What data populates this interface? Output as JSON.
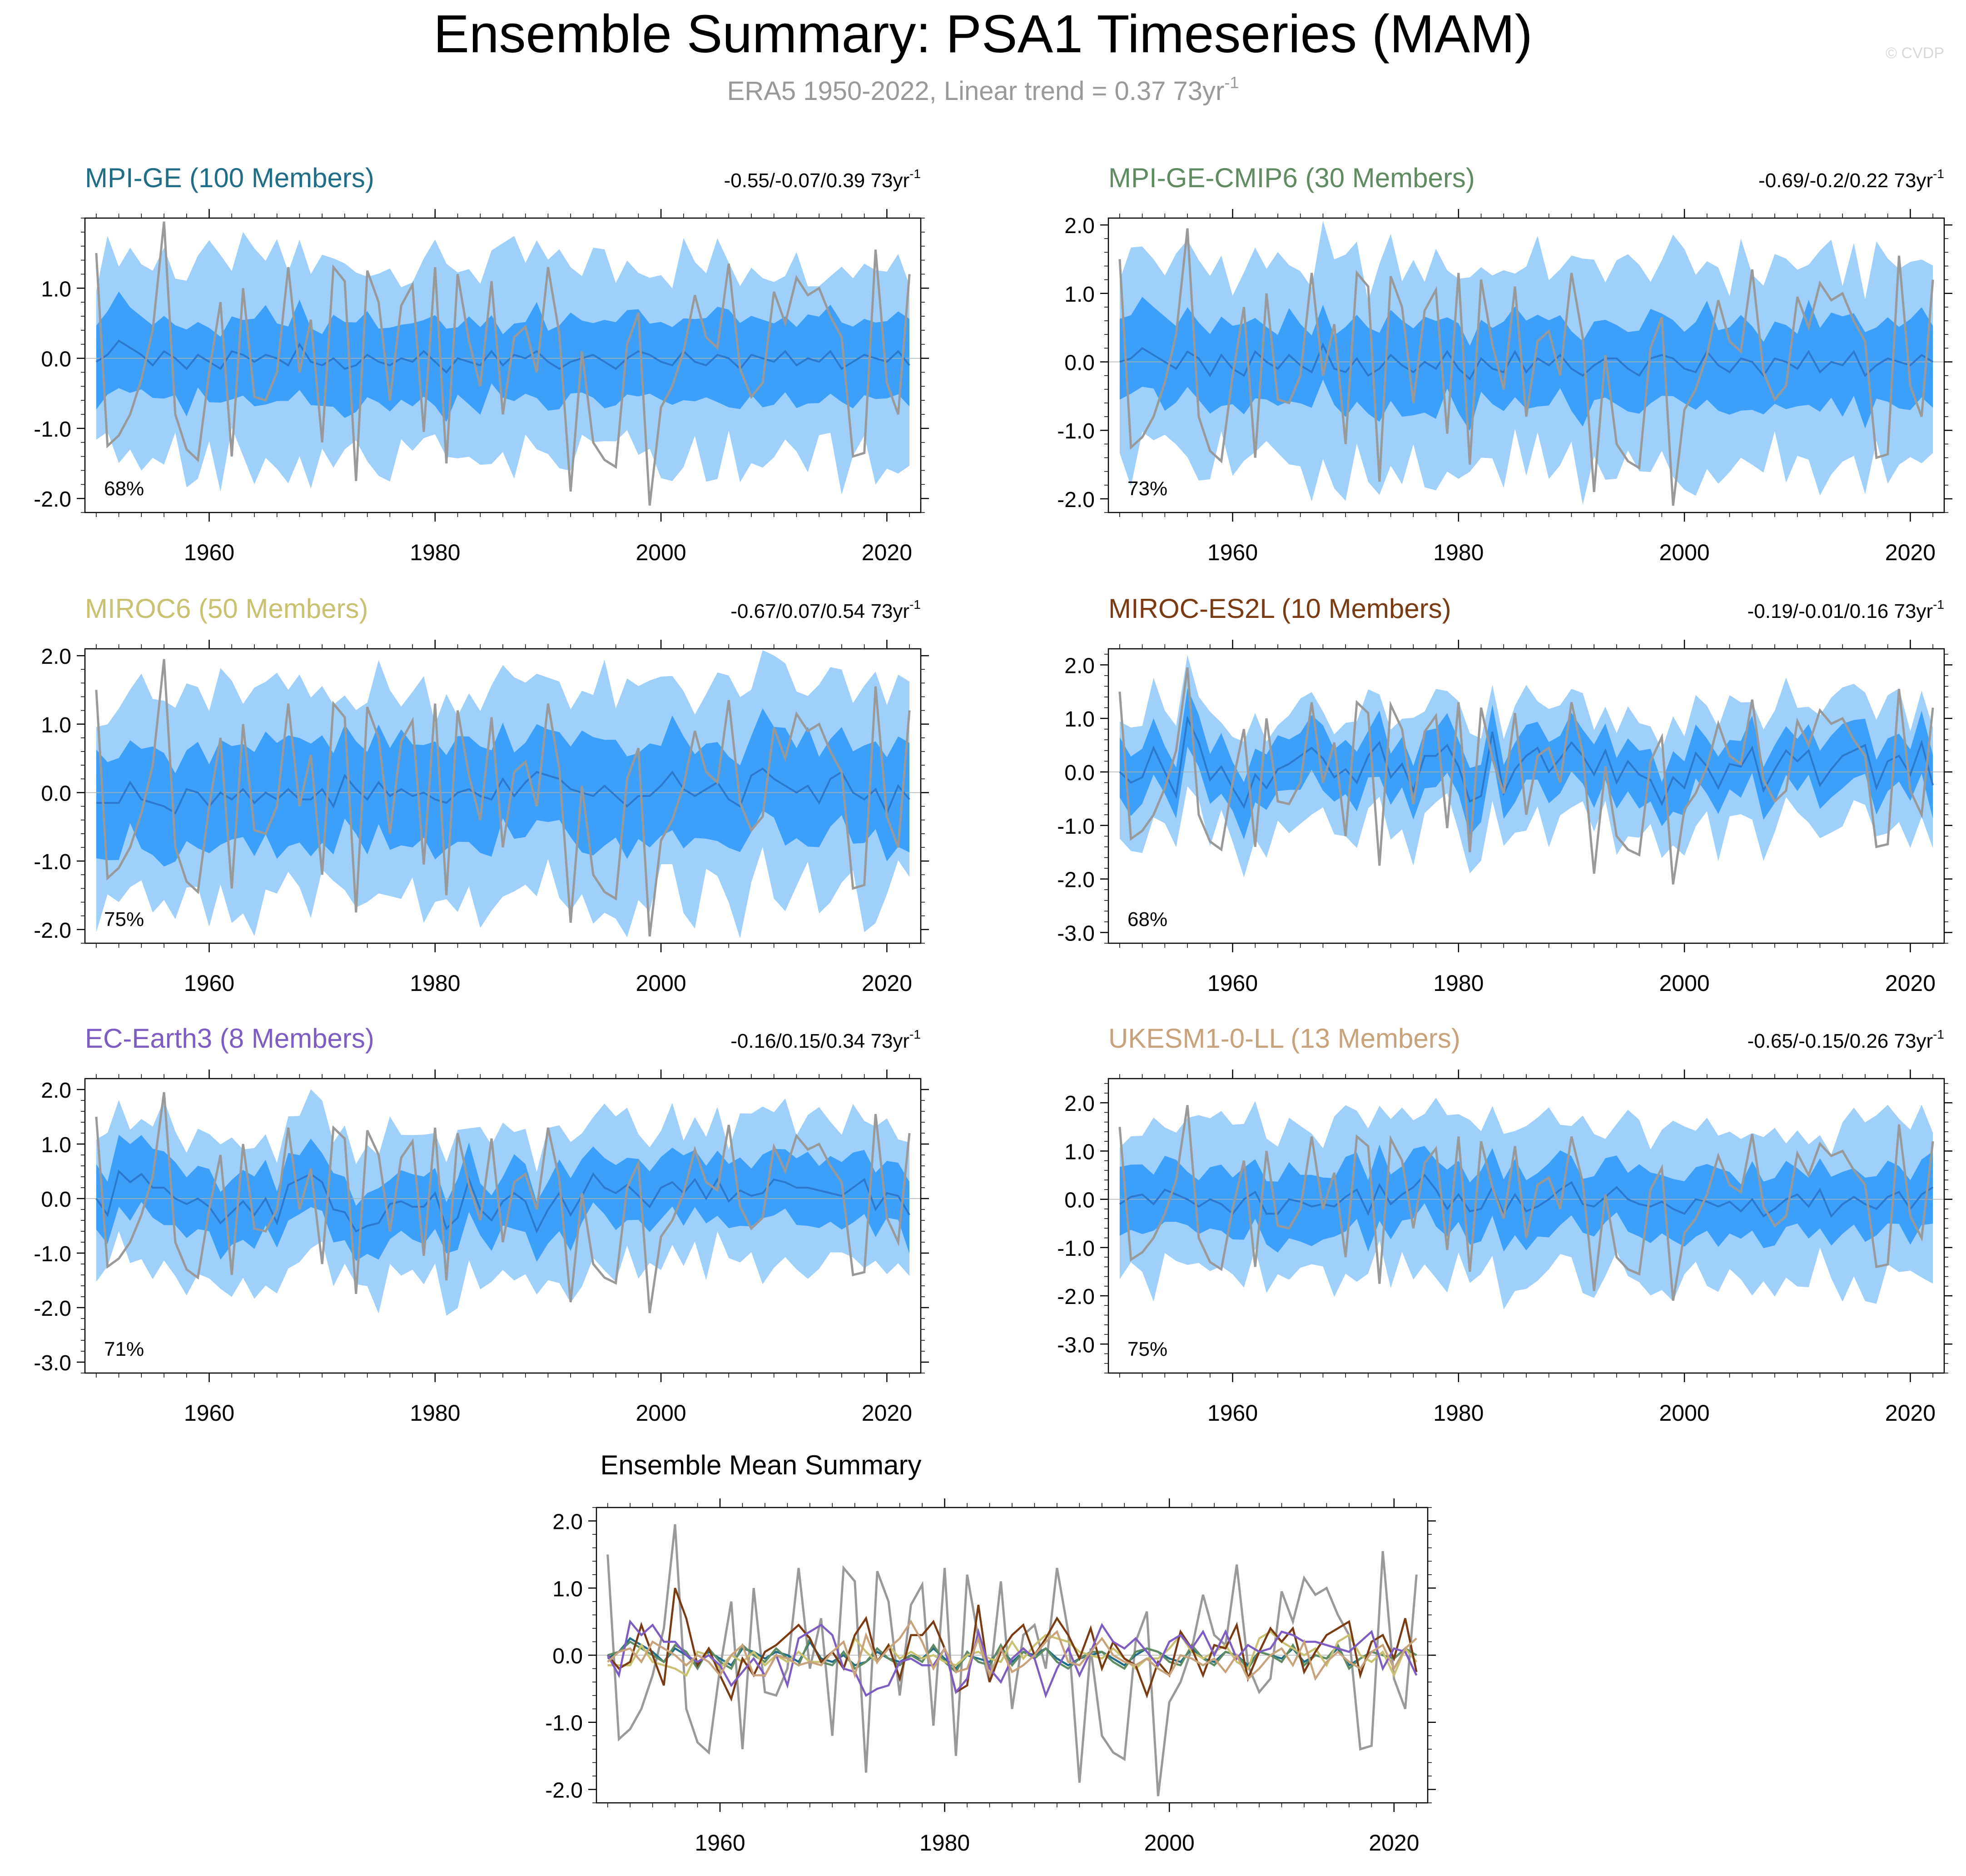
{
  "page": {
    "title": "Ensemble Summary: PSA1 Timeseries (MAM)",
    "subtitle_main": "ERA5 1950-2022, Linear trend = 0.37 73yr",
    "subtitle_sup": "-1",
    "watermark": "© CVDP"
  },
  "colors": {
    "outer_band": "#9fd0fb",
    "inner_band": "#3ca0fb",
    "ens_mean_line": "#2b78cc",
    "obs_line": "#999999",
    "zero_line": "#b0b0b0"
  },
  "chart_data": [
    {
      "type": "area",
      "panel": "MPI-GE",
      "title": "MPI-GE (100 Members)",
      "title_color": "#1f6d86",
      "trend_label": "-0.55/-0.07/0.39 73yr",
      "trend_sup": "-1",
      "pct_label": "68%",
      "ylim": [
        -2.2,
        2.0
      ],
      "yticks": [
        "1.0",
        "0.0",
        "-1.0",
        "-2.0"
      ],
      "ytick_values": [
        1.0,
        0.0,
        -1.0,
        -2.0
      ],
      "xticks": [
        "1960",
        "1980",
        "2000",
        "2020"
      ],
      "xtick_values": [
        1960,
        1980,
        2000,
        2020
      ],
      "xlim": [
        1949,
        2023
      ],
      "ens_mean": [
        -0.05,
        0.05,
        0.25,
        0.15,
        0.05,
        -0.1,
        0.1,
        0.0,
        -0.15,
        0.05,
        -0.05,
        -0.15,
        0.1,
        0.05,
        -0.05,
        0.05,
        0.0,
        -0.1,
        0.2,
        -0.05,
        -0.1,
        0.0,
        -0.15,
        -0.1,
        0.05,
        -0.05,
        -0.1,
        0.0,
        -0.05,
        0.1,
        -0.05,
        -0.2,
        0.0,
        -0.05,
        -0.1,
        0.1,
        -0.1,
        0.05,
        0.0,
        0.1,
        -0.05,
        -0.15,
        -0.05,
        0.0,
        0.05,
        -0.05,
        -0.15,
        0.0,
        0.1,
        0.05,
        -0.05,
        -0.1,
        0.1,
        -0.05,
        -0.1,
        0.05,
        0.0,
        -0.15,
        0.05,
        0.0,
        -0.05,
        0.1,
        -0.1,
        0.0,
        -0.05,
        0.1,
        -0.15,
        -0.05,
        0.05,
        0.0,
        -0.05,
        0.1,
        -0.1
      ],
      "band_spread": [
        1.35,
        0.55
      ]
    },
    {
      "type": "area",
      "panel": "MPI-GE-CMIP6",
      "title": "MPI-GE-CMIP6 (30 Members)",
      "title_color": "#5f8a62",
      "trend_label": "-0.69/-0.2/0.22 73yr",
      "trend_sup": "-1",
      "pct_label": "73%",
      "ylim": [
        -2.2,
        2.1
      ],
      "yticks": [
        "2.0",
        "1.0",
        "0.0",
        "-1.0",
        "-2.0"
      ],
      "ytick_values": [
        2.0,
        1.0,
        0.0,
        -1.0,
        -2.0
      ],
      "xticks": [
        "1960",
        "1980",
        "2000",
        "2020"
      ],
      "xtick_values": [
        1960,
        1980,
        2000,
        2020
      ],
      "xlim": [
        1949,
        2023
      ],
      "ens_mean": [
        0.0,
        0.05,
        0.2,
        0.1,
        0.0,
        -0.1,
        0.15,
        0.05,
        -0.2,
        0.1,
        -0.1,
        -0.2,
        0.15,
        0.0,
        -0.1,
        0.1,
        -0.05,
        -0.15,
        0.25,
        -0.1,
        -0.15,
        0.05,
        -0.2,
        -0.1,
        0.1,
        -0.05,
        -0.15,
        0.0,
        -0.1,
        0.15,
        -0.1,
        -0.25,
        0.05,
        -0.1,
        -0.15,
        0.15,
        -0.15,
        0.05,
        -0.05,
        0.1,
        -0.1,
        -0.2,
        -0.05,
        0.05,
        0.05,
        -0.1,
        -0.2,
        0.05,
        0.1,
        0.05,
        -0.1,
        -0.15,
        0.15,
        -0.05,
        -0.15,
        0.05,
        0.0,
        -0.2,
        0.05,
        0.0,
        -0.1,
        0.15,
        -0.15,
        0.0,
        -0.05,
        0.15,
        -0.2,
        -0.05,
        0.05,
        0.0,
        -0.05,
        0.1,
        0.0
      ],
      "band_spread": [
        1.4,
        0.6
      ]
    },
    {
      "type": "area",
      "panel": "MIROC6",
      "title": "MIROC6 (50 Members)",
      "title_color": "#c9c16f",
      "trend_label": "-0.67/0.07/0.54 73yr",
      "trend_sup": "-1",
      "pct_label": "75%",
      "ylim": [
        -2.2,
        2.1
      ],
      "yticks": [
        "2.0",
        "1.0",
        "0.0",
        "-1.0",
        "-2.0"
      ],
      "ytick_values": [
        2.0,
        1.0,
        0.0,
        -1.0,
        -2.0
      ],
      "xticks": [
        "1960",
        "1980",
        "2000",
        "2020"
      ],
      "xtick_values": [
        1960,
        1980,
        2000,
        2020
      ],
      "xlim": [
        1949,
        2023
      ],
      "ens_mean": [
        -0.15,
        -0.15,
        -0.15,
        0.15,
        -0.1,
        -0.15,
        -0.2,
        -0.3,
        0.05,
        0.0,
        -0.2,
        0.0,
        -0.1,
        0.05,
        -0.15,
        0.0,
        -0.1,
        0.05,
        -0.1,
        -0.1,
        0.05,
        -0.2,
        0.25,
        0.05,
        -0.1,
        0.15,
        -0.05,
        0.05,
        -0.05,
        0.0,
        -0.1,
        -0.15,
        0.0,
        0.05,
        -0.05,
        -0.1,
        0.2,
        -0.05,
        0.15,
        0.3,
        0.25,
        0.2,
        0.05,
        0.0,
        -0.05,
        0.1,
        -0.05,
        -0.2,
        -0.05,
        -0.05,
        0.1,
        0.3,
        0.05,
        -0.05,
        0.05,
        0.15,
        -0.1,
        -0.2,
        0.25,
        0.35,
        0.2,
        0.1,
        0.0,
        0.1,
        -0.15,
        0.2,
        0.3,
        0.0,
        -0.1,
        0.05,
        -0.3,
        0.1,
        -0.1
      ],
      "band_spread": [
        1.45,
        0.7
      ]
    },
    {
      "type": "area",
      "panel": "MIROC-ES2L",
      "title": "MIROC-ES2L (10 Members)",
      "title_color": "#7a3b12",
      "trend_label": "-0.19/-0.01/0.16 73yr",
      "trend_sup": "-1",
      "pct_label": "68%",
      "ylim": [
        -3.2,
        2.3
      ],
      "yticks": [
        "2.0",
        "1.0",
        "0.0",
        "-1.0",
        "-2.0",
        "-3.0"
      ],
      "ytick_values": [
        2.0,
        1.0,
        0.0,
        -1.0,
        -2.0,
        -3.0
      ],
      "xticks": [
        "1960",
        "1980",
        "2000",
        "2020"
      ],
      "xtick_values": [
        1960,
        1980,
        2000,
        2020
      ],
      "xlim": [
        1949,
        2023
      ],
      "ens_mean": [
        0.0,
        -0.2,
        -0.1,
        0.45,
        0.0,
        -0.45,
        1.0,
        0.55,
        -0.15,
        0.1,
        -0.3,
        -0.65,
        -0.05,
        -0.3,
        0.05,
        0.15,
        0.3,
        0.45,
        0.25,
        -0.1,
        0.05,
        -0.2,
        0.3,
        0.55,
        -0.1,
        0.15,
        -0.35,
        0.3,
        0.3,
        0.5,
        0.1,
        -0.55,
        -0.45,
        0.75,
        -0.4,
        0.05,
        0.3,
        0.45,
        0.0,
        0.25,
        0.55,
        0.3,
        -0.05,
        0.4,
        -0.2,
        0.2,
        -0.05,
        -0.15,
        -0.6,
        -0.1,
        -0.3,
        0.35,
        0.1,
        -0.3,
        0.15,
        0.1,
        0.45,
        -0.35,
        0.05,
        0.4,
        0.2,
        0.4,
        -0.25,
        0.05,
        0.3,
        0.4,
        0.5,
        -0.3,
        0.2,
        0.3,
        -0.05,
        0.55,
        -0.25
      ],
      "band_spread": [
        1.05,
        0.5
      ]
    },
    {
      "type": "area",
      "panel": "EC-Earth3",
      "title": "EC-Earth3 (8 Members)",
      "title_color": "#7e5cc3",
      "trend_label": "-0.16/0.15/0.34 73yr",
      "trend_sup": "-1",
      "pct_label": "71%",
      "ylim": [
        -3.2,
        2.2
      ],
      "yticks": [
        "2.0",
        "1.0",
        "0.0",
        "-1.0",
        "-2.0",
        "-3.0"
      ],
      "ytick_values": [
        2.0,
        1.0,
        0.0,
        -1.0,
        -2.0,
        -3.0
      ],
      "xticks": [
        "1960",
        "1980",
        "2000",
        "2020"
      ],
      "xtick_values": [
        1960,
        1980,
        2000,
        2020
      ],
      "xlim": [
        1949,
        2023
      ],
      "ens_mean": [
        0.0,
        -0.3,
        0.5,
        0.3,
        0.45,
        0.2,
        0.2,
        0.0,
        -0.1,
        0.0,
        -0.15,
        -0.45,
        -0.25,
        -0.05,
        -0.3,
        0.0,
        -0.45,
        0.25,
        0.35,
        0.45,
        0.3,
        -0.2,
        -0.25,
        -0.6,
        -0.5,
        -0.45,
        -0.1,
        -0.05,
        -0.15,
        -0.15,
        0.1,
        -0.55,
        -0.35,
        0.35,
        -0.2,
        -0.4,
        -0.05,
        0.1,
        -0.05,
        -0.6,
        -0.2,
        0.1,
        -0.3,
        0.05,
        0.45,
        0.2,
        0.1,
        0.25,
        0.05,
        -0.15,
        0.2,
        0.3,
        0.1,
        0.35,
        0.0,
        0.35,
        -0.05,
        0.15,
        0.05,
        0.1,
        0.35,
        0.3,
        0.2,
        0.2,
        0.15,
        0.1,
        0.05,
        0.2,
        0.35,
        -0.2,
        0.1,
        0.05,
        -0.3
      ],
      "band_spread": [
        1.25,
        0.55
      ]
    },
    {
      "type": "area",
      "panel": "UKESM1-0-LL",
      "title": "UKESM1-0-LL (13 Members)",
      "title_color": "#c8a27a",
      "trend_label": "-0.65/-0.15/0.26 73yr",
      "trend_sup": "-1",
      "pct_label": "75%",
      "ylim": [
        -3.6,
        2.5
      ],
      "yticks": [
        "2.0",
        "1.0",
        "0.0",
        "-1.0",
        "-2.0",
        "-3.0"
      ],
      "ytick_values": [
        2.0,
        1.0,
        0.0,
        -1.0,
        -2.0,
        -3.0
      ],
      "xticks": [
        "1960",
        "1980",
        "2000",
        "2020"
      ],
      "xtick_values": [
        1960,
        1980,
        2000,
        2020
      ],
      "xlim": [
        1949,
        2023
      ],
      "ens_mean": [
        -0.1,
        0.05,
        0.1,
        -0.1,
        0.2,
        0.1,
        0.0,
        -0.15,
        0.0,
        -0.1,
        -0.3,
        0.0,
        0.15,
        -0.3,
        -0.3,
        0.0,
        -0.05,
        -0.15,
        -0.1,
        -0.15,
        0.05,
        0.2,
        -0.3,
        0.3,
        -0.1,
        0.1,
        0.25,
        0.5,
        0.2,
        -0.2,
        0.1,
        -0.25,
        -0.2,
        0.25,
        -0.3,
        0.1,
        -0.25,
        -0.15,
        0.0,
        0.2,
        0.35,
        -0.1,
        -0.15,
        0.05,
        0.25,
        0.0,
        -0.1,
        -0.15,
        -0.05,
        -0.2,
        -0.3,
        0.0,
        -0.05,
        -0.15,
        -0.05,
        -0.25,
        0.0,
        -0.35,
        -0.2,
        0.0,
        0.1,
        -0.15,
        0.2,
        -0.35,
        -0.1,
        0.05,
        -0.1,
        -0.2,
        0.05,
        0.15,
        -0.2,
        0.1,
        0.25
      ],
      "band_spread": [
        1.5,
        0.65
      ]
    }
  ],
  "obs_series": {
    "name": "ERA5",
    "years_start": 1950,
    "values": [
      1.5,
      -1.25,
      -1.1,
      -0.8,
      -0.3,
      0.4,
      1.95,
      -0.8,
      -1.3,
      -1.45,
      -0.2,
      0.8,
      -1.4,
      1.0,
      -0.55,
      -0.6,
      -0.2,
      1.3,
      -0.2,
      0.55,
      -1.2,
      1.3,
      1.1,
      -1.75,
      1.25,
      0.8,
      -0.6,
      0.75,
      1.05,
      -1.05,
      1.3,
      -1.5,
      1.2,
      0.25,
      -0.4,
      1.1,
      -0.8,
      0.3,
      0.45,
      -0.2,
      1.3,
      0.35,
      -1.9,
      0.1,
      -1.2,
      -1.45,
      -1.55,
      0.2,
      0.65,
      -2.1,
      -0.7,
      -0.4,
      0.1,
      0.9,
      0.3,
      0.15,
      1.35,
      -0.15,
      -0.55,
      -0.35,
      0.95,
      0.5,
      1.15,
      0.9,
      1.0,
      0.6,
      0.3,
      -1.4,
      -1.35,
      1.55,
      -0.35,
      -0.8,
      1.2
    ]
  },
  "mean_summary": {
    "type": "line",
    "title": "Ensemble Mean Summary",
    "ylim": [
      -2.2,
      2.2
    ],
    "yticks": [
      "2.0",
      "1.0",
      "0.0",
      "-1.0",
      "-2.0"
    ],
    "ytick_values": [
      2.0,
      1.0,
      0.0,
      -1.0,
      -2.0
    ],
    "xticks": [
      "1960",
      "1980",
      "2000",
      "2020"
    ],
    "xtick_values": [
      1960,
      1980,
      2000,
      2020
    ],
    "xlim": [
      1949,
      2023
    ],
    "series_colors": [
      "#1f6d86",
      "#5f8a62",
      "#c9c16f",
      "#7a3b12",
      "#7e5cc3",
      "#c8a27a"
    ]
  }
}
